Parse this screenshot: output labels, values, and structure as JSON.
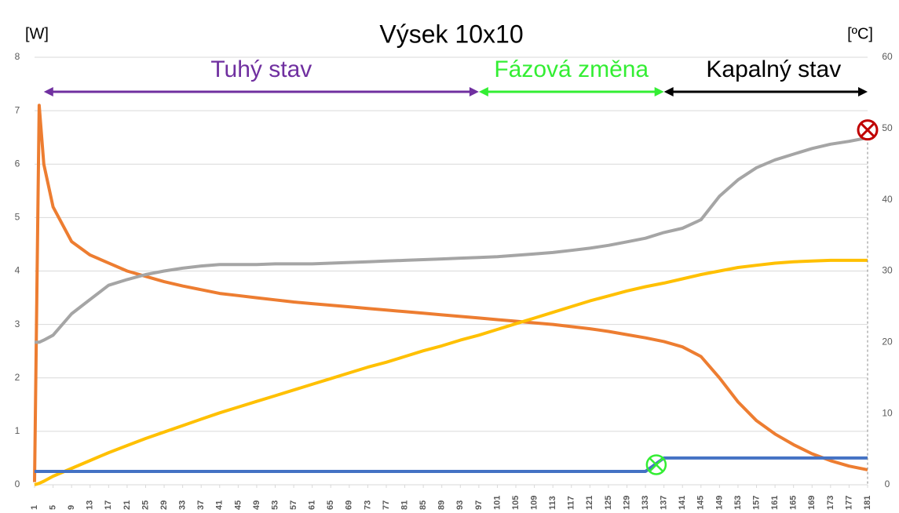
{
  "chart_data": {
    "type": "line",
    "title": "Výsek 10x10",
    "y_label": "[W]",
    "y2_label": "[ºC]",
    "x": [
      1,
      2,
      3,
      5,
      9,
      13,
      17,
      21,
      25,
      29,
      33,
      37,
      41,
      45,
      49,
      53,
      57,
      61,
      65,
      69,
      73,
      77,
      81,
      85,
      89,
      93,
      97,
      101,
      105,
      109,
      113,
      117,
      121,
      125,
      129,
      133,
      137,
      141,
      145,
      149,
      153,
      157,
      161,
      165,
      169,
      173,
      177,
      181
    ],
    "xlim": [
      1,
      181
    ],
    "xticks": [
      1,
      5,
      9,
      13,
      17,
      21,
      25,
      29,
      33,
      37,
      41,
      45,
      49,
      53,
      57,
      61,
      65,
      69,
      73,
      77,
      81,
      85,
      89,
      93,
      97,
      101,
      105,
      109,
      113,
      117,
      121,
      125,
      129,
      133,
      137,
      141,
      145,
      149,
      153,
      157,
      161,
      165,
      169,
      173,
      177,
      181
    ],
    "ylim": [
      0,
      8
    ],
    "yticks": [
      0,
      1,
      2,
      3,
      4,
      5,
      6,
      7,
      8
    ],
    "y2lim": [
      0,
      60
    ],
    "y2ticks": [
      0,
      10,
      20,
      30,
      40,
      50,
      60
    ],
    "grid": true,
    "regions": [
      {
        "label": "Tuhý stav",
        "start": 3,
        "end": 97,
        "color": "#7030a0"
      },
      {
        "label": "Fázová změna",
        "start": 97,
        "end": 137,
        "color": "#33ee33"
      },
      {
        "label": "Kapalný stav",
        "start": 137,
        "end": 181,
        "color": "#000000"
      }
    ],
    "series": [
      {
        "color": "#ed7d31",
        "values": [
          0.05,
          7.1,
          6.0,
          5.2,
          4.55,
          4.3,
          4.15,
          4.0,
          3.9,
          3.8,
          3.72,
          3.65,
          3.58,
          3.54,
          3.5,
          3.46,
          3.42,
          3.39,
          3.36,
          3.33,
          3.3,
          3.27,
          3.24,
          3.21,
          3.18,
          3.15,
          3.12,
          3.09,
          3.06,
          3.03,
          3.0,
          2.96,
          2.92,
          2.87,
          2.81,
          2.75,
          2.68,
          2.58,
          2.4,
          2.0,
          1.55,
          1.2,
          0.95,
          0.75,
          0.58,
          0.45,
          0.35,
          0.28
        ]
      },
      {
        "color": "#a5a5a5",
        "axis": "y2",
        "values": [
          20,
          20,
          20.3,
          21,
          24,
          26,
          28,
          28.8,
          29.5,
          30,
          30.4,
          30.7,
          30.9,
          30.9,
          30.9,
          31,
          31,
          31,
          31.1,
          31.2,
          31.3,
          31.4,
          31.5,
          31.6,
          31.7,
          31.8,
          31.9,
          32,
          32.2,
          32.4,
          32.6,
          32.9,
          33.2,
          33.6,
          34.1,
          34.6,
          35.4,
          36,
          37.2,
          40.5,
          42.8,
          44.5,
          45.6,
          46.4,
          47.2,
          47.8,
          48.2,
          48.7
        ]
      },
      {
        "color": "#ffc000",
        "axis": "y2",
        "values": [
          0,
          0.2,
          0.5,
          1.2,
          2.3,
          3.4,
          4.5,
          5.5,
          6.5,
          7.4,
          8.3,
          9.2,
          10.1,
          10.9,
          11.7,
          12.5,
          13.3,
          14.1,
          14.9,
          15.7,
          16.5,
          17.2,
          18.0,
          18.8,
          19.5,
          20.3,
          21.0,
          21.8,
          22.6,
          23.4,
          24.2,
          25.0,
          25.8,
          26.5,
          27.2,
          27.8,
          28.3,
          28.9,
          29.5,
          30.0,
          30.5,
          30.8,
          31.1,
          31.3,
          31.4,
          31.5,
          31.5,
          31.5
        ]
      },
      {
        "color": "#4472c4",
        "values": [
          0.25,
          0.25,
          0.25,
          0.25,
          0.25,
          0.25,
          0.25,
          0.25,
          0.25,
          0.25,
          0.25,
          0.25,
          0.25,
          0.25,
          0.25,
          0.25,
          0.25,
          0.25,
          0.25,
          0.25,
          0.25,
          0.25,
          0.25,
          0.25,
          0.25,
          0.25,
          0.25,
          0.25,
          0.25,
          0.25,
          0.25,
          0.25,
          0.25,
          0.25,
          0.25,
          0.25,
          0.5,
          0.5,
          0.5,
          0.5,
          0.5,
          0.5,
          0.5,
          0.5,
          0.5,
          0.5,
          0.5,
          0.5
        ]
      }
    ]
  }
}
